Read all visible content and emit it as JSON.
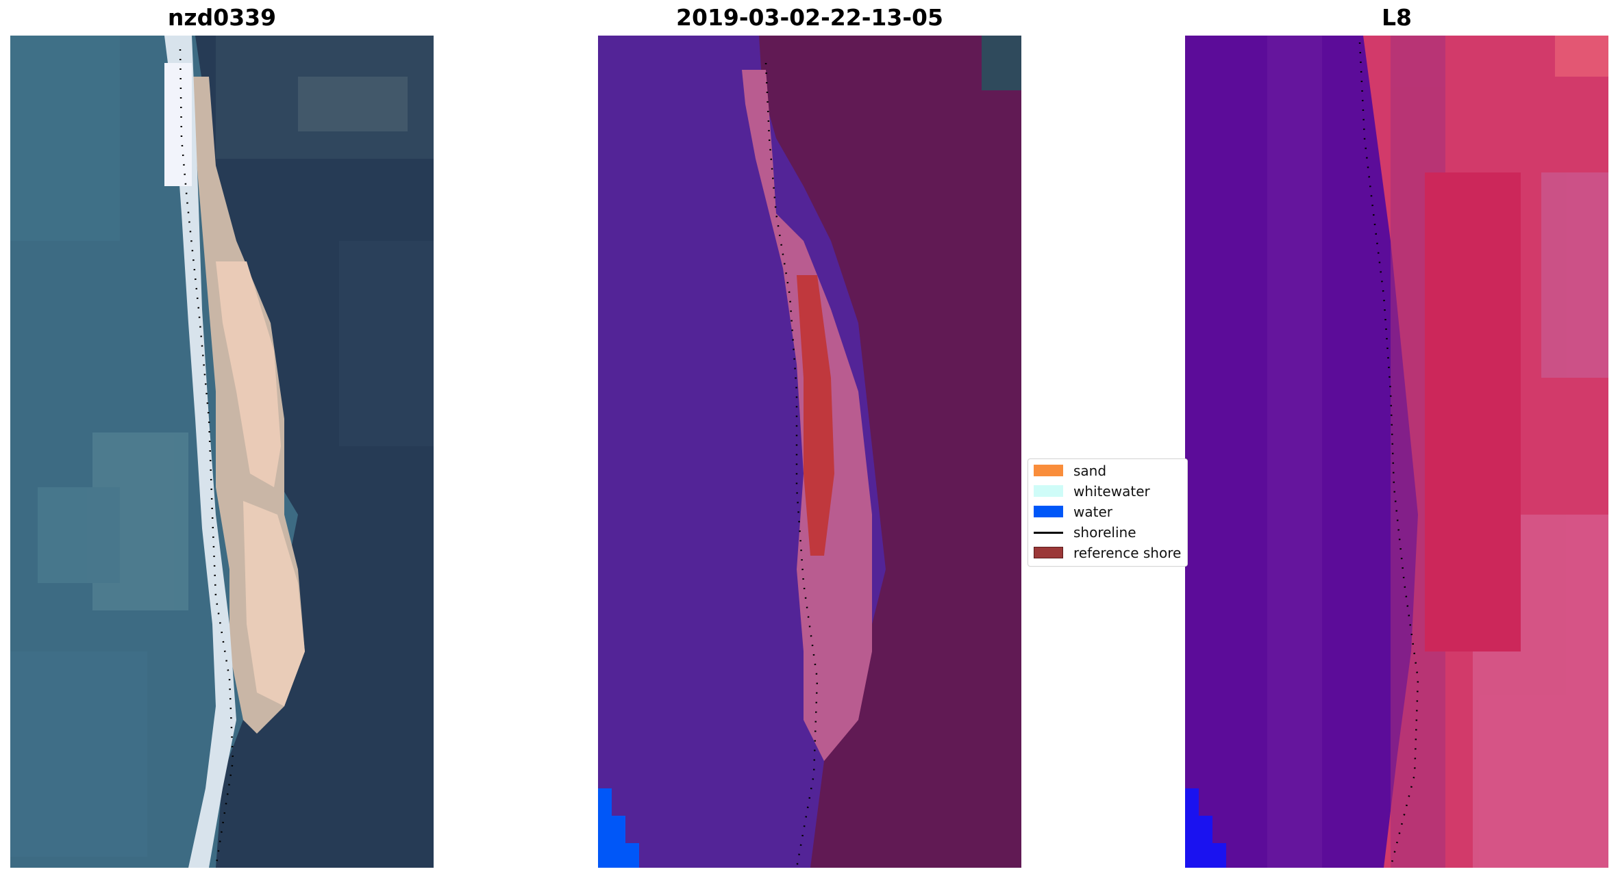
{
  "panels": [
    {
      "title": "nzd0339",
      "kind": "rgb"
    },
    {
      "title": "2019-03-02-22-13-05",
      "kind": "classification"
    },
    {
      "title": "L8",
      "kind": "false-color"
    }
  ],
  "legend": {
    "items": [
      {
        "label": "sand",
        "color": "#f98d3b"
      },
      {
        "label": "whitewater",
        "color": "#cffcf8"
      },
      {
        "label": "water",
        "color": "#0057f8"
      },
      {
        "label": "shoreline",
        "color": "#000000"
      },
      {
        "label": "reference shore",
        "color": "#9b3838"
      }
    ]
  },
  "colors": {
    "rgb_ocean": "#3d6b83",
    "rgb_land": "#263b55",
    "rgb_sand": "#e9cbb8",
    "rgb_surf": "#d6e2ec",
    "class_water_bg": "#532497",
    "class_land": "#611a54",
    "class_beach": "#b95c90",
    "class_refshore": "#c0383d",
    "class_water": "#0057f8",
    "fc_water": "#5c0c99",
    "fc_land": "#d23a6a",
    "fc_land_pale": "#d96a9c",
    "fc_blue": "#1a12f0"
  }
}
